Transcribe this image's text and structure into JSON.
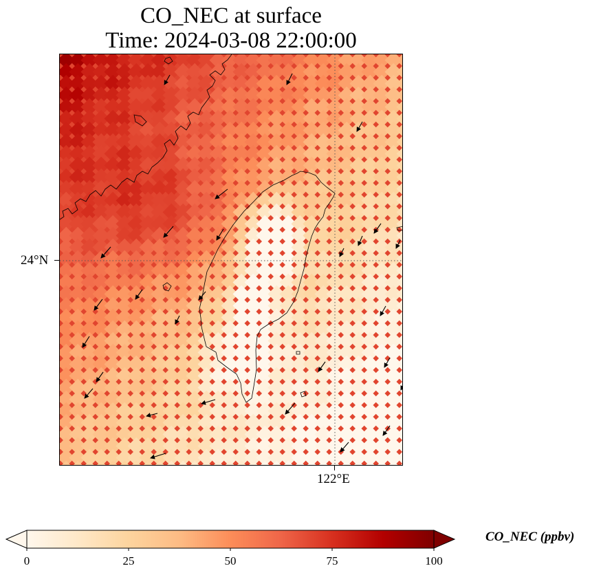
{
  "title": {
    "line1": "CO_NEC at surface",
    "line2": "Time: 2024-03-08 22:00:00"
  },
  "map": {
    "lat_tick_label": "24°N",
    "lon_tick_label": "122°E",
    "field": "CO_NEC",
    "colormap": [
      "#fff7ec",
      "#fee8c8",
      "#fdd49e",
      "#fdbb84",
      "#fc8d59",
      "#ef6548",
      "#d7301f",
      "#b30000",
      "#7f0000"
    ],
    "coastline_color": "#000000",
    "gridline_style": "dotted"
  },
  "colorbar": {
    "label": "CO_NEC (ppbv)",
    "ticks": [
      "0",
      "25",
      "50",
      "75",
      "100"
    ],
    "min": 0,
    "max": 100,
    "extend": "both"
  }
}
